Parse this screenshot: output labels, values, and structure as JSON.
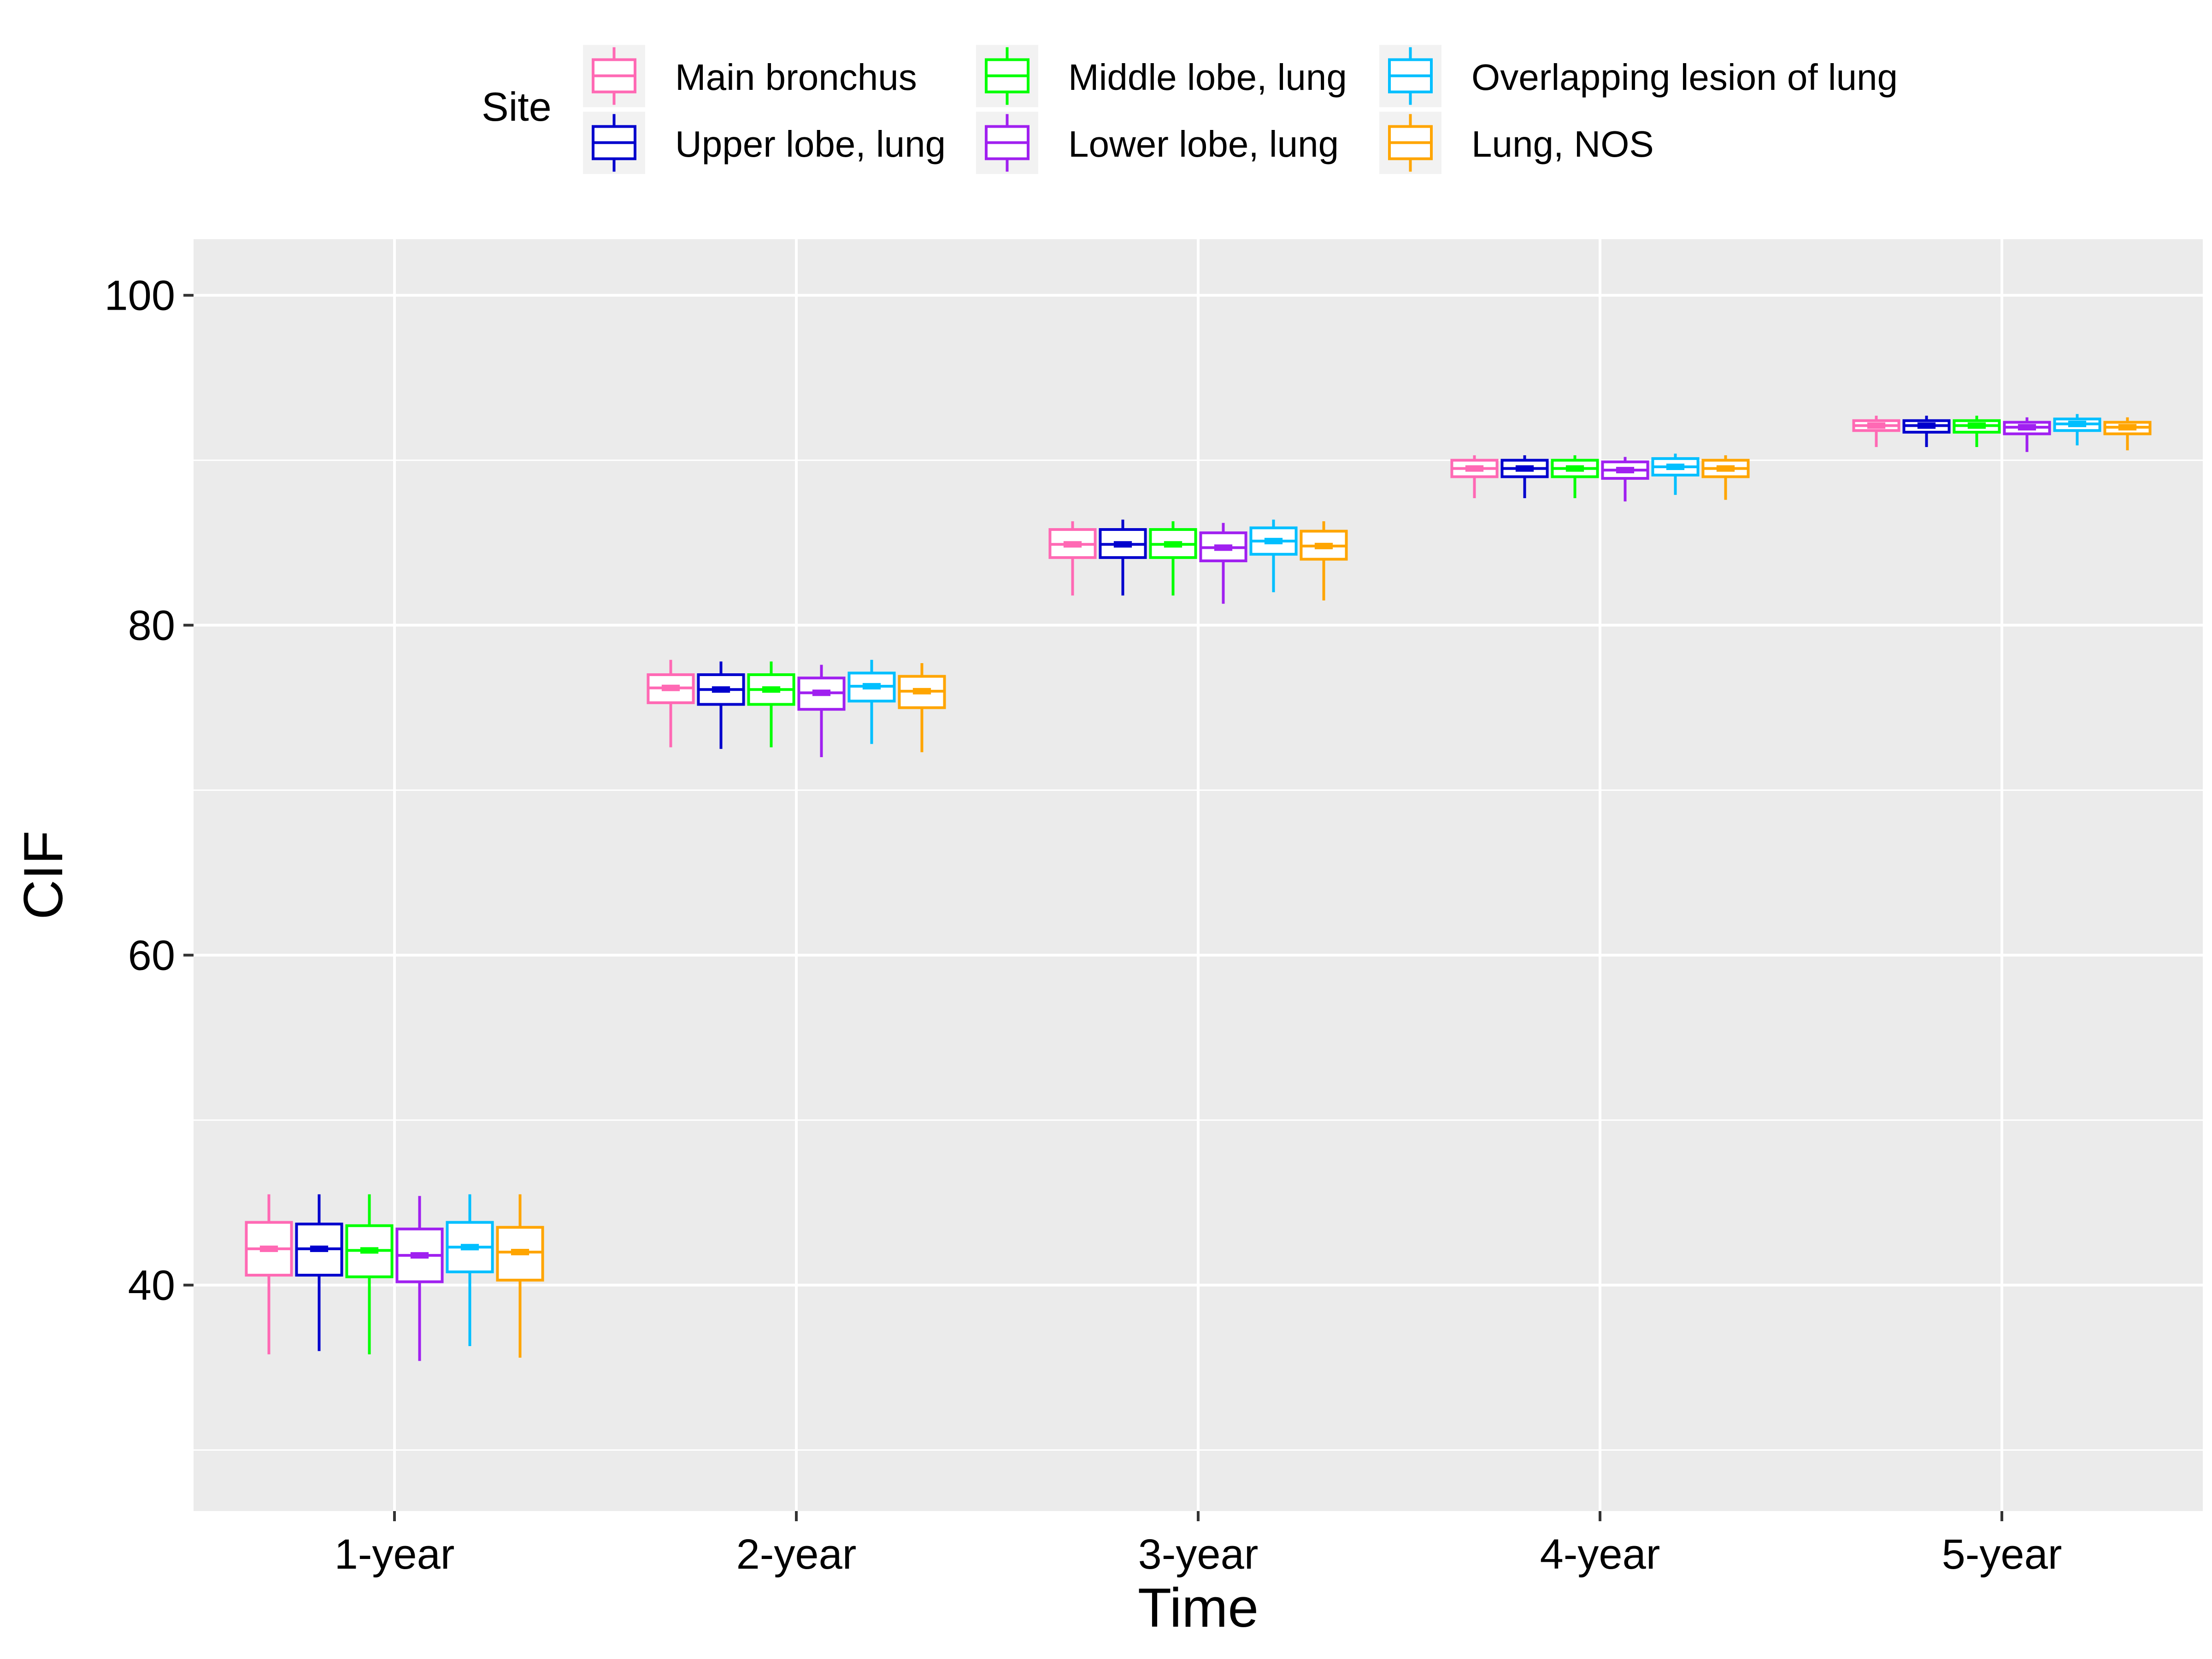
{
  "chart_data": {
    "type": "boxplot",
    "xlabel": "Time",
    "ylabel": "CIF",
    "categories": [
      "1-year",
      "2-year",
      "3-year",
      "4-year",
      "5-year"
    ],
    "ylim": [
      26.3,
      103.4
    ],
    "yticks": [
      40,
      60,
      80,
      100
    ],
    "grid": true,
    "legend": {
      "title": "Site",
      "position": "top",
      "ncol": 3
    },
    "series": [
      {
        "name": "Main bronchus",
        "color": "#FF69B4",
        "boxes": [
          {
            "min": 35.8,
            "q1": 40.6,
            "median": 42.2,
            "q3": 43.8,
            "max": 45.5
          },
          {
            "min": 72.6,
            "q1": 75.3,
            "median": 76.2,
            "q3": 77.0,
            "max": 77.9
          },
          {
            "min": 81.8,
            "q1": 84.1,
            "median": 84.9,
            "q3": 85.8,
            "max": 86.3
          },
          {
            "min": 87.7,
            "q1": 89.0,
            "median": 89.5,
            "q3": 90.0,
            "max": 90.3
          },
          {
            "min": 90.8,
            "q1": 91.8,
            "median": 92.1,
            "q3": 92.4,
            "max": 92.7
          }
        ]
      },
      {
        "name": "Upper lobe, lung",
        "color": "#0000CD",
        "boxes": [
          {
            "min": 36.0,
            "q1": 40.6,
            "median": 42.2,
            "q3": 43.7,
            "max": 45.5
          },
          {
            "min": 72.5,
            "q1": 75.2,
            "median": 76.1,
            "q3": 77.0,
            "max": 77.8
          },
          {
            "min": 81.8,
            "q1": 84.1,
            "median": 84.9,
            "q3": 85.8,
            "max": 86.4
          },
          {
            "min": 87.7,
            "q1": 89.0,
            "median": 89.5,
            "q3": 90.0,
            "max": 90.3
          },
          {
            "min": 90.8,
            "q1": 91.7,
            "median": 92.1,
            "q3": 92.4,
            "max": 92.7
          }
        ]
      },
      {
        "name": "Middle lobe, lung",
        "color": "#00FF00",
        "boxes": [
          {
            "min": 35.8,
            "q1": 40.5,
            "median": 42.1,
            "q3": 43.6,
            "max": 45.5
          },
          {
            "min": 72.6,
            "q1": 75.2,
            "median": 76.1,
            "q3": 77.0,
            "max": 77.8
          },
          {
            "min": 81.8,
            "q1": 84.1,
            "median": 84.9,
            "q3": 85.8,
            "max": 86.3
          },
          {
            "min": 87.7,
            "q1": 89.0,
            "median": 89.5,
            "q3": 90.0,
            "max": 90.3
          },
          {
            "min": 90.8,
            "q1": 91.7,
            "median": 92.1,
            "q3": 92.4,
            "max": 92.7
          }
        ]
      },
      {
        "name": "Lower lobe, lung",
        "color": "#A020F0",
        "boxes": [
          {
            "min": 35.4,
            "q1": 40.2,
            "median": 41.8,
            "q3": 43.4,
            "max": 45.4
          },
          {
            "min": 72.0,
            "q1": 74.9,
            "median": 75.9,
            "q3": 76.8,
            "max": 77.6
          },
          {
            "min": 81.3,
            "q1": 83.9,
            "median": 84.7,
            "q3": 85.6,
            "max": 86.2
          },
          {
            "min": 87.5,
            "q1": 88.9,
            "median": 89.4,
            "q3": 89.9,
            "max": 90.2
          },
          {
            "min": 90.5,
            "q1": 91.6,
            "median": 92.0,
            "q3": 92.3,
            "max": 92.6
          }
        ]
      },
      {
        "name": "Overlapping lesion of lung",
        "color": "#00BFFF",
        "boxes": [
          {
            "min": 36.3,
            "q1": 40.8,
            "median": 42.3,
            "q3": 43.8,
            "max": 45.5
          },
          {
            "min": 72.8,
            "q1": 75.4,
            "median": 76.3,
            "q3": 77.1,
            "max": 77.9
          },
          {
            "min": 82.0,
            "q1": 84.3,
            "median": 85.1,
            "q3": 85.9,
            "max": 86.4
          },
          {
            "min": 87.9,
            "q1": 89.1,
            "median": 89.6,
            "q3": 90.1,
            "max": 90.4
          },
          {
            "min": 90.9,
            "q1": 91.8,
            "median": 92.2,
            "q3": 92.5,
            "max": 92.8
          }
        ]
      },
      {
        "name": "Lung, NOS",
        "color": "#FFA500",
        "boxes": [
          {
            "min": 35.6,
            "q1": 40.3,
            "median": 42.0,
            "q3": 43.5,
            "max": 45.5
          },
          {
            "min": 72.3,
            "q1": 75.0,
            "median": 76.0,
            "q3": 76.9,
            "max": 77.7
          },
          {
            "min": 81.5,
            "q1": 84.0,
            "median": 84.8,
            "q3": 85.7,
            "max": 86.3
          },
          {
            "min": 87.6,
            "q1": 89.0,
            "median": 89.5,
            "q3": 90.0,
            "max": 90.3
          },
          {
            "min": 90.6,
            "q1": 91.6,
            "median": 92.0,
            "q3": 92.3,
            "max": 92.6
          }
        ]
      }
    ]
  }
}
